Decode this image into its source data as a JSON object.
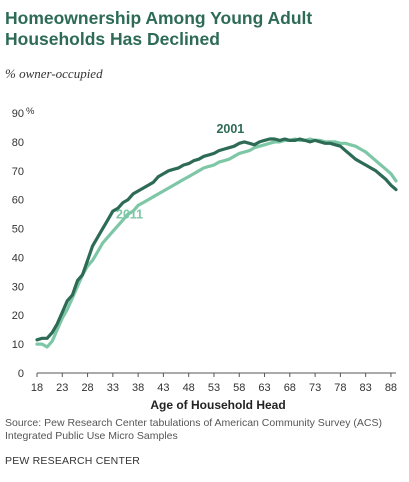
{
  "header": {
    "title": "Homeownership Among Young Adult Households Has Declined",
    "subtitle": "% owner-occupied"
  },
  "chart_data": {
    "type": "line",
    "title": "Homeownership Among Young Adult Households Has Declined",
    "ylabel": "% owner-occupied",
    "xlabel": "Age of Household Head",
    "ylim": [
      0,
      90
    ],
    "xlim": [
      18,
      89
    ],
    "y_ticks": [
      "0",
      "10",
      "20",
      "30",
      "40",
      "50",
      "60",
      "70",
      "80",
      "90"
    ],
    "y_unit": "%",
    "x_ticks": [
      "18",
      "23",
      "28",
      "33",
      "38",
      "43",
      "48",
      "53",
      "58",
      "63",
      "68",
      "73",
      "78",
      "83",
      "88"
    ],
    "grid": false,
    "colors": {
      "2001": "#2e6b57",
      "2011": "#7ec7a6"
    },
    "series": [
      {
        "name": "2001",
        "x": [
          18,
          19,
          20,
          21,
          22,
          23,
          24,
          25,
          26,
          27,
          28,
          29,
          30,
          31,
          32,
          33,
          34,
          35,
          36,
          37,
          38,
          39,
          40,
          41,
          42,
          43,
          44,
          45,
          46,
          47,
          48,
          49,
          50,
          51,
          52,
          53,
          54,
          55,
          56,
          57,
          58,
          59,
          60,
          61,
          62,
          63,
          64,
          65,
          66,
          67,
          68,
          69,
          70,
          71,
          72,
          73,
          74,
          75,
          76,
          77,
          78,
          79,
          80,
          81,
          82,
          83,
          84,
          85,
          86,
          87,
          88,
          89
        ],
        "values": [
          11.5,
          12,
          12,
          14,
          17,
          21,
          25,
          27,
          32,
          34,
          39,
          44,
          47,
          50,
          53,
          56,
          57,
          59,
          60,
          62,
          63,
          64,
          65,
          66,
          68,
          69,
          70,
          70.5,
          71,
          72,
          72.5,
          73.5,
          74,
          75,
          75.5,
          76,
          77,
          77.5,
          78,
          78.5,
          79.5,
          80,
          79.5,
          79,
          80,
          80.5,
          81,
          81,
          80.5,
          81,
          80.5,
          80.5,
          81,
          80.5,
          80,
          80.5,
          80,
          79.5,
          79.5,
          79,
          78.5,
          77,
          75.5,
          74,
          73,
          72,
          71,
          70,
          68.5,
          67,
          65,
          63.5
        ]
      },
      {
        "name": "2011",
        "x": [
          18,
          19,
          20,
          21,
          22,
          23,
          24,
          25,
          26,
          27,
          28,
          29,
          30,
          31,
          32,
          33,
          34,
          35,
          36,
          37,
          38,
          39,
          40,
          41,
          42,
          43,
          44,
          45,
          46,
          47,
          48,
          49,
          50,
          51,
          52,
          53,
          54,
          55,
          56,
          57,
          58,
          59,
          60,
          61,
          62,
          63,
          64,
          65,
          66,
          67,
          68,
          69,
          70,
          71,
          72,
          73,
          74,
          75,
          76,
          77,
          78,
          79,
          80,
          81,
          82,
          83,
          84,
          85,
          86,
          87,
          88,
          89
        ],
        "values": [
          10,
          10,
          9,
          11,
          15,
          19,
          22,
          26,
          30,
          34,
          37,
          39,
          42,
          45,
          47,
          49,
          51,
          53,
          55,
          56,
          58,
          59,
          60,
          61,
          62,
          63,
          64,
          65,
          66,
          67,
          68,
          69,
          70,
          71,
          71.5,
          72,
          73,
          73.5,
          74,
          75,
          76,
          76.5,
          77,
          78,
          78.5,
          79,
          79.5,
          80,
          80,
          80.5,
          80.5,
          81,
          80.5,
          80.5,
          81,
          80.5,
          80.5,
          80,
          80,
          80,
          79.5,
          79.5,
          79,
          78.5,
          77.5,
          76.5,
          75,
          73.5,
          72,
          70.5,
          69,
          66.5
        ]
      }
    ]
  },
  "footer": {
    "source": "Source: Pew Research Center tabulations of American Community Survey (ACS) Integrated Public Use Micro Samples",
    "org": "PEW RESEARCH CENTER"
  }
}
